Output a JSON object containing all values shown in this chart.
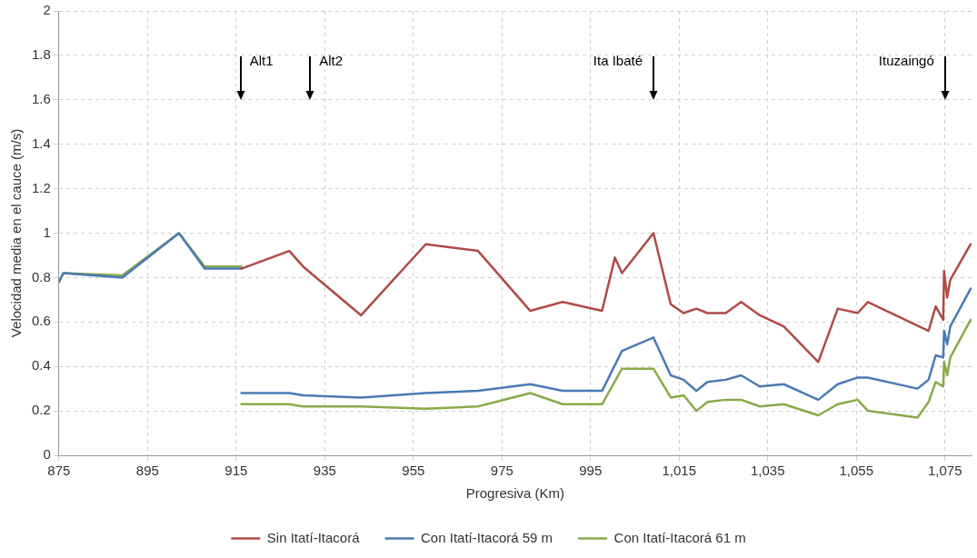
{
  "chart_data": {
    "type": "line",
    "xlabel": "Progresiva (Km)",
    "ylabel": "Velocidad media en el cauce (m/s)",
    "xlim": [
      875,
      1081
    ],
    "xticks": [
      875,
      895,
      915,
      935,
      955,
      975,
      995,
      {
        "value": 1015,
        "label": "1,015"
      },
      {
        "value": 1035,
        "label": "1,035"
      },
      {
        "value": 1055,
        "label": "1,055"
      },
      {
        "value": 1075,
        "label": "1,075"
      }
    ],
    "ylim": [
      0,
      2
    ],
    "yticks": [
      0,
      0.2,
      0.4,
      0.6,
      0.8,
      1,
      1.2,
      1.4,
      1.6,
      1.8,
      2
    ],
    "grid": true,
    "legend": "bottom",
    "marker": "none",
    "line_style": "solid",
    "ref_lines": [
      {
        "axis": "x",
        "value": 916,
        "label": "Alt1"
      },
      {
        "axis": "x",
        "value": 931.7,
        "label": "Alt2"
      },
      {
        "axis": "x",
        "value": 1009.2,
        "label": "Ita Ibaté"
      },
      {
        "axis": "x",
        "value": 1075,
        "label": "Ituzaingó"
      }
    ],
    "series": [
      {
        "name": "Sin Itatí-Itacorá",
        "color": "#b04a46",
        "x": [
          916.2,
          927,
          930.1,
          943.2,
          957.8,
          969.6,
          981.4,
          988.7,
          997.6,
          1000.5,
          1002.1,
          1009.2,
          1013.1,
          1016,
          1018.9,
          1021.4,
          1025.5,
          1029,
          1033.2,
          1038.6,
          1046.4,
          1050.8,
          1055.3,
          1057.6,
          1071.3,
          1072.9,
          1074.6,
          1074.8,
          1075.5,
          1076.2,
          1080.8
        ],
        "values": [
          0.84,
          0.92,
          0.85,
          0.63,
          0.95,
          0.92,
          0.65,
          0.69,
          0.65,
          0.89,
          0.82,
          1.0,
          0.68,
          0.64,
          0.66,
          0.64,
          0.64,
          0.69,
          0.63,
          0.58,
          0.42,
          0.66,
          0.64,
          0.69,
          0.56,
          0.67,
          0.61,
          0.83,
          0.71,
          0.79,
          0.95
        ]
      },
      {
        "name": "Con Itatí-Itacorá 59 m",
        "color": "#4a7ab5",
        "x": [
          875,
          876,
          889.3,
          902.1,
          907.9,
          916.2,
          null,
          916.2,
          927,
          930.1,
          943.2,
          957.8,
          969.6,
          981.4,
          988.7,
          997.6,
          1002.1,
          1009.2,
          1013.1,
          1016,
          1018.9,
          1021.4,
          1025.5,
          1029,
          1033.2,
          1038.6,
          1046.4,
          1050.8,
          1055.3,
          1057.6,
          1068.8,
          1071.3,
          1072.9,
          1074.6,
          1074.8,
          1075.5,
          1076.2,
          1080.8
        ],
        "values": [
          0.78,
          0.82,
          0.8,
          1.0,
          0.84,
          0.84,
          null,
          0.28,
          0.28,
          0.27,
          0.26,
          0.28,
          0.29,
          0.32,
          0.29,
          0.29,
          0.47,
          0.53,
          0.36,
          0.34,
          0.29,
          0.33,
          0.34,
          0.36,
          0.31,
          0.32,
          0.25,
          0.32,
          0.35,
          0.35,
          0.3,
          0.34,
          0.45,
          0.44,
          0.56,
          0.5,
          0.58,
          0.75
        ]
      },
      {
        "name": "Con Itatí-Itacorá 61 m",
        "color": "#8aaa4a",
        "x": [
          875,
          876,
          889.3,
          902.1,
          907.9,
          916.2,
          null,
          916.2,
          927,
          930.1,
          943.2,
          957.8,
          969.6,
          981.4,
          988.7,
          997.6,
          1002.1,
          1009.2,
          1013.1,
          1016,
          1018.9,
          1021.4,
          1025.5,
          1029,
          1033.2,
          1038.6,
          1046.4,
          1050.8,
          1055.3,
          1057.6,
          1068.8,
          1071.3,
          1072.9,
          1074.6,
          1074.8,
          1075.5,
          1076.2,
          1080.8
        ],
        "values": [
          0.78,
          0.82,
          0.81,
          1.0,
          0.85,
          0.85,
          null,
          0.23,
          0.23,
          0.22,
          0.22,
          0.21,
          0.22,
          0.28,
          0.23,
          0.23,
          0.39,
          0.39,
          0.26,
          0.27,
          0.2,
          0.24,
          0.25,
          0.25,
          0.22,
          0.23,
          0.18,
          0.23,
          0.25,
          0.2,
          0.17,
          0.24,
          0.33,
          0.31,
          0.42,
          0.36,
          0.44,
          0.61
        ]
      }
    ]
  }
}
